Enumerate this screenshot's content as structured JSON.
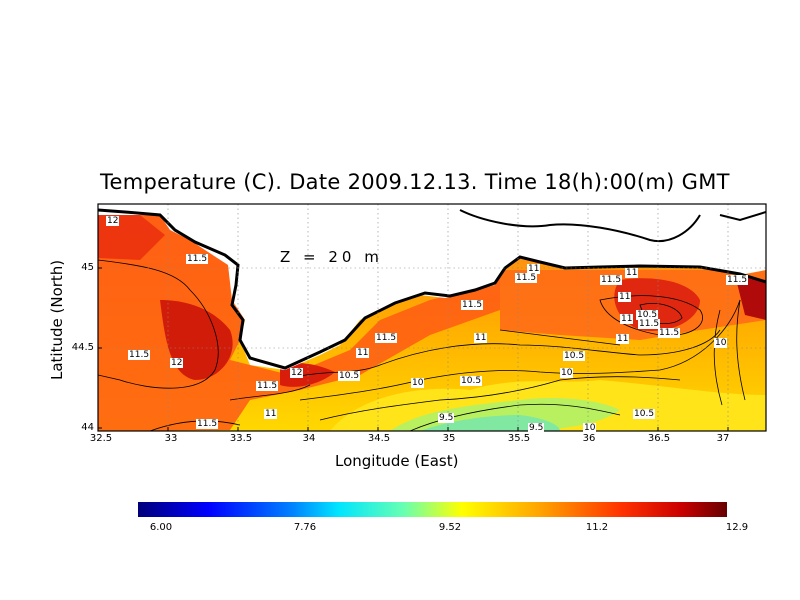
{
  "title": "Temperature (C). Date 2009.12.13. Time 18(h):00(m) GMT",
  "depth_label": "Z = 20 m",
  "xlabel": "Longitude (East)",
  "ylabel": "Latitude (North)",
  "x_ticks": [
    "32.5",
    "33",
    "33.5",
    "34",
    "34.5",
    "35",
    "35.5",
    "36",
    "36.5",
    "37"
  ],
  "y_ticks": [
    "45",
    "44.5",
    "44"
  ],
  "colorbar": {
    "ticks": [
      "6.00",
      "7.76",
      "9.52",
      "11.2",
      "12.9"
    ]
  },
  "contour_labels": [
    "12",
    "11.5",
    "11",
    "11.5",
    "11.5",
    "11",
    "11",
    "11.5",
    "11.5",
    "11",
    "11",
    "10.5",
    "11.5",
    "11",
    "10.5",
    "11.5",
    "11.5",
    "12",
    "11.5",
    "10.5",
    "10",
    "10.5",
    "10",
    "10",
    "11",
    "9.5",
    "9.5",
    "10",
    "10.5",
    "11.5",
    "11.5",
    "12",
    "11"
  ],
  "chart_data": {
    "type": "heatmap",
    "title": "Temperature (C). Date 2009.12.13. Time 18(h):00(m) GMT",
    "xlabel": "Longitude (East)",
    "ylabel": "Latitude (North)",
    "xlim": [
      32.5,
      37.3
    ],
    "ylim": [
      44.0,
      45.35
    ],
    "colorbar_range": [
      6.0,
      12.9
    ],
    "contour_levels": [
      9.5,
      10,
      10.5,
      11,
      11.5,
      12
    ]
  }
}
